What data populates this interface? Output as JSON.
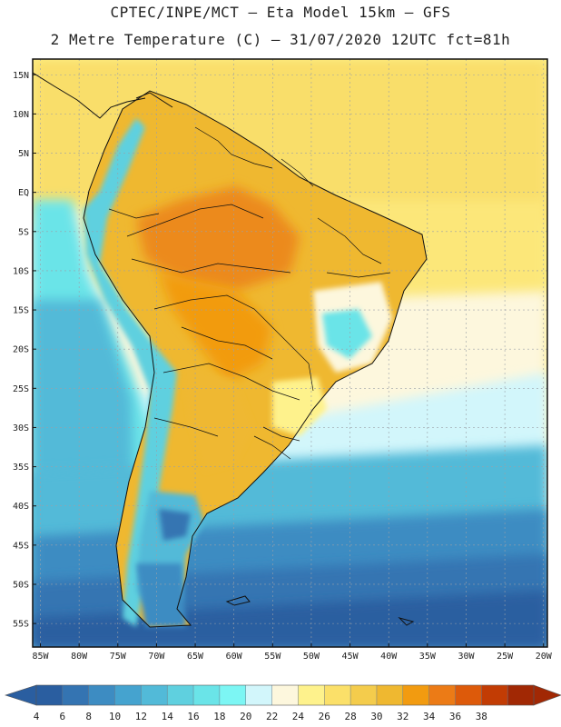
{
  "header": {
    "line1": "CPTEC/INPE/MCT –  Eta Model 15km – GFS",
    "line2": "2 Metre Temperature (C) – 31/07/2020 12UTC fct=81h"
  },
  "axes": {
    "lat_labels": [
      "15N",
      "10N",
      "5N",
      "EQ",
      "5S",
      "10S",
      "15S",
      "20S",
      "25S",
      "30S",
      "35S",
      "40S",
      "45S",
      "50S",
      "55S"
    ],
    "lat_values": [
      15,
      10,
      5,
      0,
      -5,
      -10,
      -15,
      -20,
      -25,
      -30,
      -35,
      -40,
      -45,
      -50,
      -55
    ],
    "lon_labels": [
      "85W",
      "80W",
      "75W",
      "70W",
      "65W",
      "60W",
      "55W",
      "50W",
      "45W",
      "40W",
      "35W",
      "30W",
      "25W",
      "20W"
    ],
    "lon_values": [
      -85,
      -80,
      -75,
      -70,
      -65,
      -60,
      -55,
      -50,
      -45,
      -40,
      -35,
      -30,
      -25,
      -20
    ],
    "lat_range": [
      -58,
      17
    ],
    "lon_range": [
      -86,
      -19.5
    ]
  },
  "colorbar": {
    "ticks": [
      "4",
      "6",
      "8",
      "10",
      "12",
      "14",
      "16",
      "18",
      "20",
      "22",
      "24",
      "26",
      "28",
      "30",
      "32",
      "34",
      "36",
      "38"
    ],
    "colors": [
      "#2a5ea0",
      "#3474b2",
      "#3d8cc2",
      "#45a3cf",
      "#52bad8",
      "#5fd0df",
      "#6ae4e8",
      "#7cf6f4",
      "#d2f6fb",
      "#fdf7dd",
      "#fef28c",
      "#fbe069",
      "#f4cc4c",
      "#efb830",
      "#f29b10",
      "#ec7b16",
      "#dd5a0a",
      "#c23c04",
      "#a12804"
    ]
  }
}
